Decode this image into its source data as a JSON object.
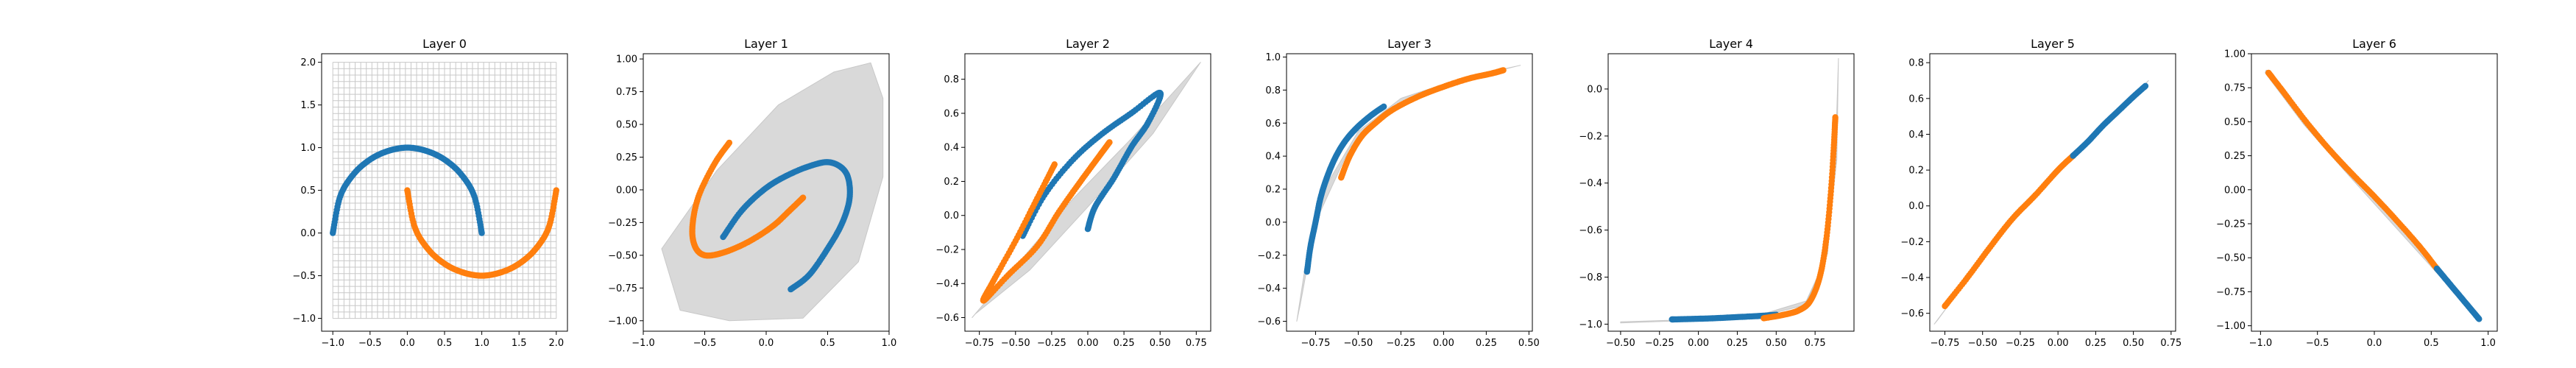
{
  "figure": {
    "background": "#ffffff",
    "colors": {
      "class0": "#1f77b4",
      "class1": "#ff7f0e",
      "grid": "#c8c8c8"
    }
  },
  "chart_data": [
    {
      "type": "scatter",
      "title": "Layer 0",
      "xlim": [
        -1.15,
        2.15
      ],
      "ylim": [
        -1.15,
        2.1
      ],
      "xticks": [
        -1.0,
        -0.5,
        0.0,
        0.5,
        1.0,
        1.5,
        2.0
      ],
      "xtick_labels": [
        "−1.0",
        "−0.5",
        "0.0",
        "0.5",
        "1.0",
        "1.5",
        "2.0"
      ],
      "yticks": [
        -1.0,
        -0.5,
        0.0,
        0.5,
        1.0,
        1.5,
        2.0
      ],
      "ytick_labels": [
        "−1.0",
        "−0.5",
        "0.0",
        "0.5",
        "1.0",
        "1.5",
        "2.0"
      ],
      "grid_mesh": {
        "shown": true,
        "x_range": [
          -1.0,
          2.0
        ],
        "y_range": [
          -1.0,
          2.0
        ]
      },
      "series": [
        {
          "color": "#1f77b4",
          "points": [
            [
              -1.0,
              0.0
            ],
            [
              -0.9,
              0.43
            ],
            [
              -0.72,
              0.69
            ],
            [
              -0.5,
              0.86
            ],
            [
              -0.26,
              0.96
            ],
            [
              0.0,
              1.0
            ],
            [
              0.26,
              0.96
            ],
            [
              0.5,
              0.86
            ],
            [
              0.72,
              0.69
            ],
            [
              0.9,
              0.43
            ],
            [
              1.0,
              0.0
            ]
          ]
        },
        {
          "color": "#ff7f0e",
          "points": [
            [
              0.0,
              0.5
            ],
            [
              0.1,
              0.07
            ],
            [
              0.28,
              -0.19
            ],
            [
              0.5,
              -0.36
            ],
            [
              0.74,
              -0.46
            ],
            [
              1.0,
              -0.5
            ],
            [
              1.26,
              -0.46
            ],
            [
              1.5,
              -0.36
            ],
            [
              1.72,
              -0.19
            ],
            [
              1.9,
              0.07
            ],
            [
              2.0,
              0.5
            ]
          ]
        }
      ]
    },
    {
      "type": "scatter",
      "title": "Layer 1",
      "xlim": [
        -1.0,
        1.0
      ],
      "ylim": [
        -1.08,
        1.04
      ],
      "xticks": [
        -1.0,
        -0.5,
        0.0,
        0.5,
        1.0
      ],
      "xtick_labels": [
        "−1.0",
        "−0.5",
        "0.0",
        "0.5",
        "1.0"
      ],
      "yticks": [
        -1.0,
        -0.75,
        -0.5,
        -0.25,
        0.0,
        0.25,
        0.5,
        0.75,
        1.0
      ],
      "ytick_labels": [
        "−1.00",
        "−0.75",
        "−0.50",
        "−0.25",
        "0.00",
        "0.25",
        "0.50",
        "0.75",
        "1.00"
      ],
      "grid_mesh": {
        "shown": true,
        "outline": [
          [
            -0.7,
            -0.92
          ],
          [
            -0.3,
            -1.0
          ],
          [
            0.3,
            -0.98
          ],
          [
            0.75,
            -0.55
          ],
          [
            0.95,
            0.1
          ],
          [
            0.95,
            0.7
          ],
          [
            0.85,
            0.97
          ],
          [
            0.55,
            0.9
          ],
          [
            0.1,
            0.65
          ],
          [
            -0.4,
            0.15
          ],
          [
            -0.85,
            -0.45
          ]
        ]
      },
      "series": [
        {
          "color": "#1f77b4",
          "points": [
            [
              -0.35,
              -0.36
            ],
            [
              -0.2,
              -0.16
            ],
            [
              -0.02,
              0.0
            ],
            [
              0.15,
              0.1
            ],
            [
              0.35,
              0.18
            ],
            [
              0.52,
              0.21
            ],
            [
              0.65,
              0.13
            ],
            [
              0.68,
              -0.05
            ],
            [
              0.62,
              -0.25
            ],
            [
              0.5,
              -0.45
            ],
            [
              0.35,
              -0.65
            ],
            [
              0.2,
              -0.76
            ]
          ]
        },
        {
          "color": "#ff7f0e",
          "points": [
            [
              -0.3,
              0.36
            ],
            [
              -0.42,
              0.2
            ],
            [
              -0.55,
              -0.05
            ],
            [
              -0.6,
              -0.28
            ],
            [
              -0.58,
              -0.43
            ],
            [
              -0.5,
              -0.5
            ],
            [
              -0.35,
              -0.48
            ],
            [
              -0.15,
              -0.4
            ],
            [
              0.05,
              -0.28
            ],
            [
              0.2,
              -0.15
            ],
            [
              0.3,
              -0.06
            ]
          ]
        }
      ]
    },
    {
      "type": "scatter",
      "title": "Layer 2",
      "xlim": [
        -0.85,
        0.85
      ],
      "ylim": [
        -0.68,
        0.95
      ],
      "xticks": [
        -0.75,
        -0.5,
        -0.25,
        0.0,
        0.25,
        0.5,
        0.75
      ],
      "xtick_labels": [
        "−0.75",
        "−0.50",
        "−0.25",
        "0.00",
        "0.25",
        "0.50",
        "0.75"
      ],
      "yticks": [
        -0.6,
        -0.4,
        -0.2,
        0.0,
        0.2,
        0.4,
        0.6,
        0.8
      ],
      "ytick_labels": [
        "−0.6",
        "−0.4",
        "−0.2",
        "0.0",
        "0.2",
        "0.4",
        "0.6",
        "0.8"
      ],
      "grid_mesh": {
        "shown": true,
        "outline": [
          [
            -0.8,
            -0.6
          ],
          [
            -0.5,
            -0.3
          ],
          [
            -0.1,
            0.1
          ],
          [
            0.3,
            0.45
          ],
          [
            0.78,
            0.9
          ],
          [
            0.45,
            0.48
          ],
          [
            0.0,
            0.05
          ],
          [
            -0.4,
            -0.32
          ],
          [
            -0.78,
            -0.58
          ]
        ]
      },
      "series": [
        {
          "color": "#1f77b4",
          "points": [
            [
              -0.45,
              -0.12
            ],
            [
              -0.3,
              0.12
            ],
            [
              -0.1,
              0.33
            ],
            [
              0.1,
              0.48
            ],
            [
              0.3,
              0.6
            ],
            [
              0.5,
              0.72
            ],
            [
              0.42,
              0.55
            ],
            [
              0.3,
              0.4
            ],
            [
              0.18,
              0.22
            ],
            [
              0.05,
              0.05
            ],
            [
              0.0,
              -0.08
            ]
          ]
        },
        {
          "color": "#ff7f0e",
          "points": [
            [
              -0.23,
              0.3
            ],
            [
              -0.35,
              0.1
            ],
            [
              -0.5,
              -0.15
            ],
            [
              -0.65,
              -0.38
            ],
            [
              -0.72,
              -0.5
            ],
            [
              -0.55,
              -0.35
            ],
            [
              -0.35,
              -0.18
            ],
            [
              -0.2,
              0.02
            ],
            [
              -0.05,
              0.2
            ],
            [
              0.08,
              0.35
            ],
            [
              0.15,
              0.43
            ]
          ]
        }
      ]
    },
    {
      "type": "scatter",
      "title": "Layer 3",
      "xlim": [
        -0.92,
        0.52
      ],
      "ylim": [
        -0.66,
        1.02
      ],
      "xticks": [
        -0.75,
        -0.5,
        -0.25,
        0.0,
        0.25,
        0.5
      ],
      "xtick_labels": [
        "−0.75",
        "−0.50",
        "−0.25",
        "0.00",
        "0.25",
        "0.50"
      ],
      "yticks": [
        -0.6,
        -0.4,
        -0.2,
        0.0,
        0.2,
        0.4,
        0.6,
        0.8,
        1.0
      ],
      "ytick_labels": [
        "−0.6",
        "−0.4",
        "−0.2",
        "0.0",
        "0.2",
        "0.4",
        "0.6",
        "0.8",
        "1.0"
      ],
      "grid_mesh": {
        "shown": true,
        "outline": [
          [
            -0.86,
            -0.6
          ],
          [
            -0.8,
            -0.2
          ],
          [
            -0.7,
            0.2
          ],
          [
            -0.5,
            0.55
          ],
          [
            -0.25,
            0.75
          ],
          [
            0.1,
            0.87
          ],
          [
            0.45,
            0.95
          ],
          [
            0.1,
            0.86
          ],
          [
            -0.3,
            0.7
          ],
          [
            -0.55,
            0.45
          ],
          [
            -0.75,
            0.0
          ],
          [
            -0.84,
            -0.5
          ]
        ]
      },
      "series": [
        {
          "color": "#1f77b4",
          "points": [
            [
              -0.8,
              -0.3
            ],
            [
              -0.78,
              -0.15
            ],
            [
              -0.75,
              0.0
            ],
            [
              -0.72,
              0.15
            ],
            [
              -0.68,
              0.28
            ],
            [
              -0.63,
              0.4
            ],
            [
              -0.57,
              0.5
            ],
            [
              -0.5,
              0.58
            ],
            [
              -0.42,
              0.65
            ],
            [
              -0.35,
              0.7
            ]
          ]
        },
        {
          "color": "#ff7f0e",
          "points": [
            [
              -0.6,
              0.27
            ],
            [
              -0.55,
              0.4
            ],
            [
              -0.48,
              0.52
            ],
            [
              -0.4,
              0.6
            ],
            [
              -0.3,
              0.68
            ],
            [
              -0.15,
              0.76
            ],
            [
              0.0,
              0.82
            ],
            [
              0.15,
              0.87
            ],
            [
              0.28,
              0.9
            ],
            [
              0.35,
              0.92
            ]
          ]
        }
      ]
    },
    {
      "type": "scatter",
      "title": "Layer 4",
      "xlim": [
        -0.58,
        1.0
      ],
      "ylim": [
        -1.03,
        0.15
      ],
      "xticks": [
        -0.5,
        -0.25,
        0.0,
        0.25,
        0.5,
        0.75
      ],
      "xtick_labels": [
        "−0.50",
        "−0.25",
        "0.00",
        "0.25",
        "0.50",
        "0.75"
      ],
      "yticks": [
        -1.0,
        -0.8,
        -0.6,
        -0.4,
        -0.2,
        0.0
      ],
      "ytick_labels": [
        "−1.0",
        "−0.8",
        "−0.6",
        "−0.4",
        "−0.2",
        "0.0"
      ],
      "grid_mesh": {
        "shown": true,
        "outline": [
          [
            -0.5,
            -0.99
          ],
          [
            0.0,
            -0.98
          ],
          [
            0.4,
            -0.96
          ],
          [
            0.7,
            -0.9
          ],
          [
            0.83,
            -0.7
          ],
          [
            0.88,
            -0.3
          ],
          [
            0.9,
            0.13
          ],
          [
            0.89,
            -0.3
          ],
          [
            0.82,
            -0.72
          ],
          [
            0.68,
            -0.92
          ],
          [
            0.35,
            -0.975
          ],
          [
            -0.5,
            -0.995
          ]
        ]
      },
      "series": [
        {
          "color": "#1f77b4",
          "points": [
            [
              -0.17,
              -0.98
            ],
            [
              -0.05,
              -0.978
            ],
            [
              0.1,
              -0.975
            ],
            [
              0.25,
              -0.97
            ],
            [
              0.4,
              -0.965
            ],
            [
              0.5,
              -0.96
            ]
          ]
        },
        {
          "color": "#ff7f0e",
          "points": [
            [
              0.42,
              -0.975
            ],
            [
              0.55,
              -0.96
            ],
            [
              0.65,
              -0.94
            ],
            [
              0.72,
              -0.9
            ],
            [
              0.78,
              -0.8
            ],
            [
              0.82,
              -0.65
            ],
            [
              0.85,
              -0.45
            ],
            [
              0.87,
              -0.25
            ],
            [
              0.88,
              -0.12
            ]
          ]
        }
      ]
    },
    {
      "type": "scatter",
      "title": "Layer 5",
      "xlim": [
        -0.85,
        0.78
      ],
      "ylim": [
        -0.7,
        0.85
      ],
      "xticks": [
        -0.75,
        -0.5,
        -0.25,
        0.0,
        0.25,
        0.5,
        0.75
      ],
      "xtick_labels": [
        "−0.75",
        "−0.50",
        "−0.25",
        "0.00",
        "0.25",
        "0.50",
        "0.75"
      ],
      "yticks": [
        -0.6,
        -0.4,
        -0.2,
        0.0,
        0.2,
        0.4,
        0.6,
        0.8
      ],
      "ytick_labels": [
        "−0.6",
        "−0.4",
        "−0.2",
        "0.0",
        "0.2",
        "0.4",
        "0.6",
        "0.8"
      ],
      "grid_mesh": {
        "shown": true,
        "outline": [
          [
            -0.82,
            -0.66
          ],
          [
            -0.5,
            -0.3
          ],
          [
            -0.1,
            0.12
          ],
          [
            0.3,
            0.45
          ],
          [
            0.6,
            0.7
          ],
          [
            0.58,
            0.68
          ],
          [
            0.28,
            0.43
          ],
          [
            -0.12,
            0.1
          ],
          [
            -0.52,
            -0.32
          ],
          [
            -0.8,
            -0.64
          ]
        ]
      },
      "series": [
        {
          "color": "#ff7f0e",
          "points": [
            [
              -0.75,
              -0.56
            ],
            [
              -0.6,
              -0.4
            ],
            [
              -0.45,
              -0.23
            ],
            [
              -0.3,
              -0.07
            ],
            [
              -0.15,
              0.06
            ],
            [
              0.0,
              0.2
            ],
            [
              0.1,
              0.28
            ]
          ]
        },
        {
          "color": "#1f77b4",
          "points": [
            [
              0.1,
              0.28
            ],
            [
              0.2,
              0.36
            ],
            [
              0.3,
              0.45
            ],
            [
              0.4,
              0.53
            ],
            [
              0.5,
              0.61
            ],
            [
              0.58,
              0.67
            ]
          ]
        }
      ]
    },
    {
      "type": "scatter",
      "title": "Layer 6",
      "xlim": [
        -1.08,
        1.08
      ],
      "ylim": [
        -1.04,
        1.0
      ],
      "xticks": [
        -1.0,
        -0.5,
        0.0,
        0.5,
        1.0
      ],
      "xtick_labels": [
        "−1.0",
        "−0.5",
        "0.0",
        "0.5",
        "1.0"
      ],
      "yticks": [
        -1.0,
        -0.75,
        -0.5,
        -0.25,
        0.0,
        0.25,
        0.5,
        0.75,
        1.0
      ],
      "ytick_labels": [
        "−1.00",
        "−0.75",
        "−0.50",
        "−0.25",
        "0.00",
        "0.25",
        "0.50",
        "0.75",
        "1.00"
      ],
      "grid_mesh": {
        "shown": true,
        "outline": [
          [
            -0.95,
            0.88
          ],
          [
            -0.6,
            0.5
          ],
          [
            -0.2,
            0.12
          ],
          [
            0.2,
            -0.25
          ],
          [
            0.6,
            -0.62
          ],
          [
            0.93,
            -0.95
          ],
          [
            0.92,
            -0.96
          ],
          [
            0.58,
            -0.64
          ],
          [
            0.18,
            -0.27
          ],
          [
            -0.22,
            0.1
          ],
          [
            -0.62,
            0.48
          ],
          [
            -0.96,
            0.86
          ]
        ]
      },
      "series": [
        {
          "color": "#ff7f0e",
          "points": [
            [
              -0.93,
              0.86
            ],
            [
              -0.8,
              0.72
            ],
            [
              -0.6,
              0.5
            ],
            [
              -0.4,
              0.3
            ],
            [
              -0.2,
              0.12
            ],
            [
              0.0,
              -0.05
            ],
            [
              0.2,
              -0.23
            ],
            [
              0.4,
              -0.42
            ],
            [
              0.55,
              -0.58
            ]
          ]
        },
        {
          "color": "#1f77b4",
          "points": [
            [
              0.55,
              -0.58
            ],
            [
              0.65,
              -0.68
            ],
            [
              0.75,
              -0.78
            ],
            [
              0.85,
              -0.88
            ],
            [
              0.92,
              -0.95
            ]
          ]
        }
      ]
    }
  ]
}
